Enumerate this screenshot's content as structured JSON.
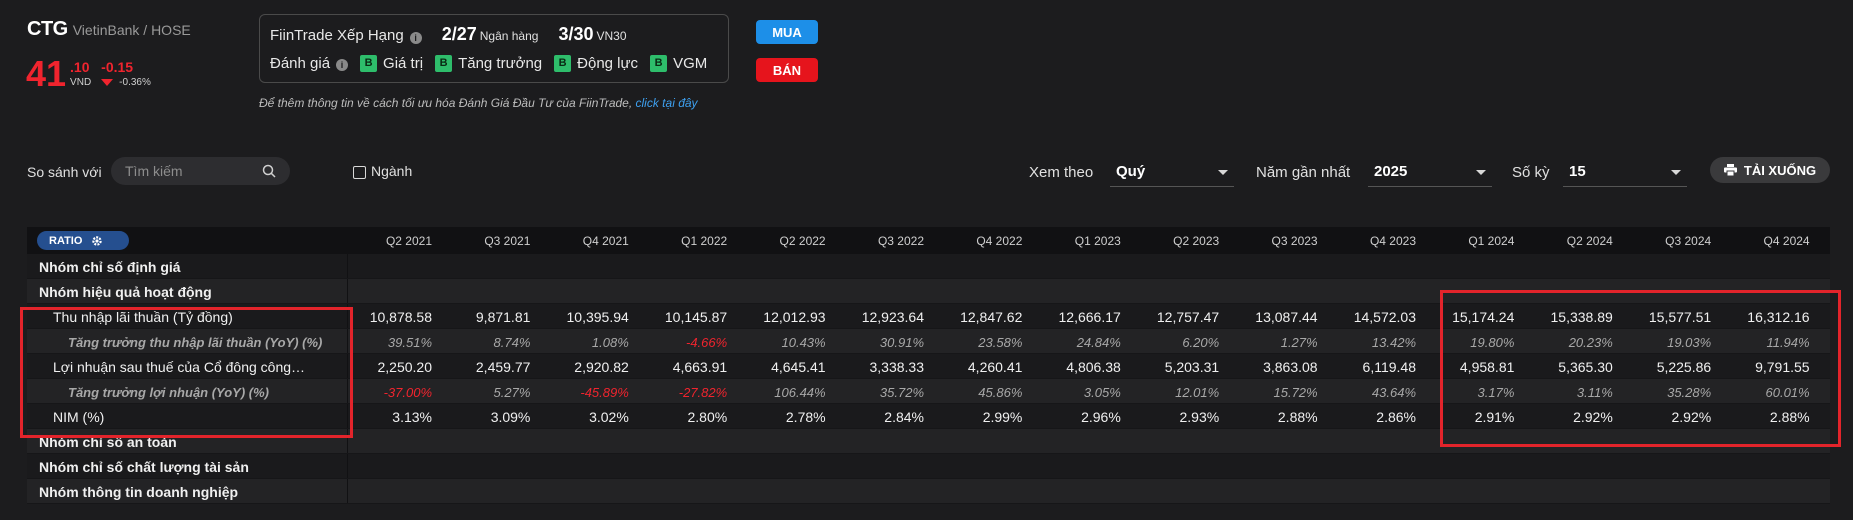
{
  "ticker": {
    "symbol": "CTG",
    "exchange": "VietinBank / HOSE"
  },
  "price": {
    "integer": "41",
    "decimal": ".10",
    "currency": "VND",
    "change": "-0.15",
    "change_pct": "-0.36%"
  },
  "ranking": {
    "label": "FiinTrade Xếp Hạng",
    "rank1_value": "2/27",
    "rank1_unit": "Ngân hàng",
    "rank2_value": "3/30",
    "rank2_unit": "VN30",
    "rating_label": "Đánh giá",
    "badges": [
      {
        "grade": "B",
        "label": "Giá trị"
      },
      {
        "grade": "B",
        "label": "Tăng trưởng"
      },
      {
        "grade": "B",
        "label": "Động lực"
      },
      {
        "grade": "B",
        "label": "VGM"
      }
    ]
  },
  "actions": {
    "buy_label": "MUA",
    "sell_label": "BÁN"
  },
  "note": {
    "text": "Để thêm thông tin về cách tối ưu hóa Đánh Giá Đầu Tư của FiinTrade, ",
    "link": "click tại đây"
  },
  "toolbar": {
    "compare_label": "So sánh với",
    "search_placeholder": "Tìm kiếm",
    "industry_label": "Ngành",
    "view_label": "Xem theo",
    "view_value": "Quý",
    "year_label": "Năm gần nhất",
    "year_value": "2025",
    "periods_label": "Số kỳ",
    "periods_value": "15",
    "download_label": "TẢI XUỐNG"
  },
  "table": {
    "ratio_label": "RATIO",
    "columns": [
      "Q2 2021",
      "Q3 2021",
      "Q4 2021",
      "Q1 2022",
      "Q2 2022",
      "Q3 2022",
      "Q4 2022",
      "Q1 2023",
      "Q2 2023",
      "Q3 2023",
      "Q4 2023",
      "Q1 2024",
      "Q2 2024",
      "Q3 2024",
      "Q4 2024"
    ],
    "rows": [
      {
        "type": "group",
        "name": "Nhóm chỉ số định giá",
        "values": []
      },
      {
        "type": "group",
        "name": "Nhóm hiệu quả hoạt động",
        "values": []
      },
      {
        "type": "metric",
        "name": "Thu nhập lãi thuần (Tỷ đồng)",
        "values": [
          "10,878.58",
          "9,871.81",
          "10,395.94",
          "10,145.87",
          "12,012.93",
          "12,923.64",
          "12,847.62",
          "12,666.17",
          "12,757.47",
          "13,087.44",
          "14,572.03",
          "15,174.24",
          "15,338.89",
          "15,577.51",
          "16,312.16"
        ]
      },
      {
        "type": "sub",
        "name": "Tăng trưởng thu nhập lãi thuần (YoY) (%)",
        "values": [
          "39.51%",
          "8.74%",
          "1.08%",
          "-4.66%",
          "10.43%",
          "30.91%",
          "23.58%",
          "24.84%",
          "6.20%",
          "1.27%",
          "13.42%",
          "19.80%",
          "20.23%",
          "19.03%",
          "11.94%"
        ]
      },
      {
        "type": "metric",
        "name": "Lợi nhuận sau thuế của Cổ đông công…",
        "values": [
          "2,250.20",
          "2,459.77",
          "2,920.82",
          "4,663.91",
          "4,645.41",
          "3,338.33",
          "4,260.41",
          "4,806.38",
          "5,203.31",
          "3,863.08",
          "6,119.48",
          "4,958.81",
          "5,365.30",
          "5,225.86",
          "9,791.55"
        ]
      },
      {
        "type": "sub",
        "name": "Tăng trưởng lợi nhuận (YoY) (%)",
        "values": [
          "-37.00%",
          "5.27%",
          "-45.89%",
          "-27.82%",
          "106.44%",
          "35.72%",
          "45.86%",
          "3.05%",
          "12.01%",
          "15.72%",
          "43.64%",
          "3.17%",
          "3.11%",
          "35.28%",
          "60.01%"
        ]
      },
      {
        "type": "metric",
        "name": "NIM (%)",
        "values": [
          "3.13%",
          "3.09%",
          "3.02%",
          "2.80%",
          "2.78%",
          "2.84%",
          "2.99%",
          "2.96%",
          "2.93%",
          "2.88%",
          "2.86%",
          "2.91%",
          "2.92%",
          "2.92%",
          "2.88%"
        ]
      },
      {
        "type": "group",
        "name": "Nhóm chỉ số an toàn",
        "values": []
      },
      {
        "type": "group",
        "name": "Nhóm chỉ số chất lượng tài sản",
        "values": []
      },
      {
        "type": "group",
        "name": "Nhóm thông tin doanh nghiệp",
        "values": []
      }
    ]
  },
  "colors": {
    "negative": "#f0242e",
    "buy": "#1d8fe8",
    "sell": "#e6141c",
    "badge": "#2ebd6b",
    "highlight": "#e3242b"
  }
}
